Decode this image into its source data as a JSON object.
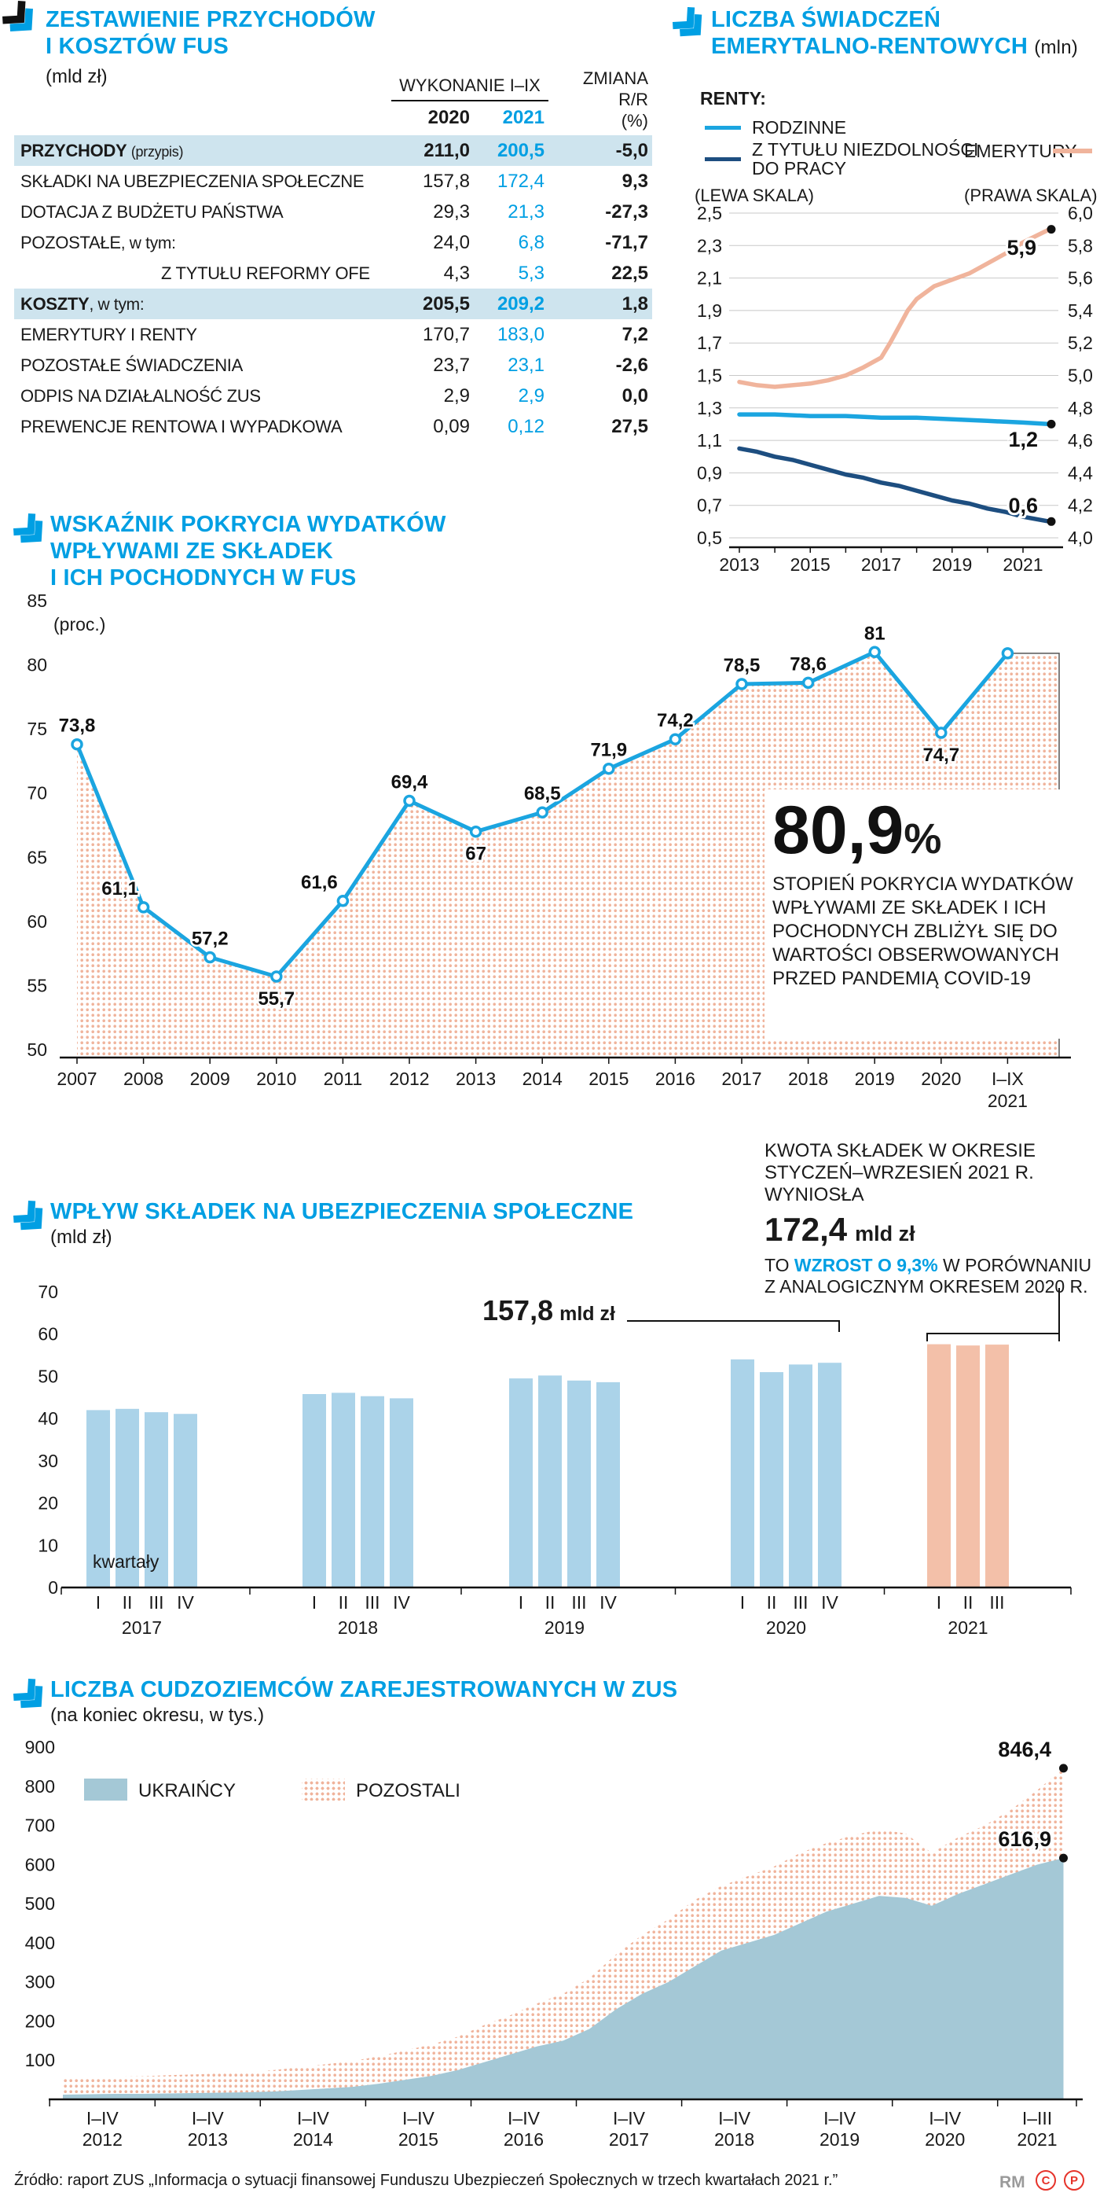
{
  "page": {
    "source_line": "Źródło: raport ZUS „Informacja o sytuacji finansowej Funduszu Ubezpieczeń Społecznych w trzech kwartałach 2021 r.”",
    "credit": "RM",
    "mark_c": "C",
    "mark_p": "P"
  },
  "colors": {
    "accent_blue": "#009fe3",
    "line_cyan": "#1ba5e0",
    "navy": "#1d4e80",
    "salmon": "#f0b49c",
    "bar_blue": "#abd3e9",
    "bar_salmon": "#f3c0a9",
    "area_blue": "#a4c8d6",
    "dot_fill": "#f0b49c",
    "table_highlight": "#cee4ee",
    "grid_grey": "#c8c8c8",
    "axis_black": "#111111",
    "mark_red": "#e6332a"
  },
  "fus_table": {
    "title_l1": "ZESTAWIENIE PRZYCHODÓW",
    "title_l2": "I KOSZTÓW FUS",
    "unit": "(mld zł)",
    "col_group": "WYKONANIE I–IX",
    "col_2020": "2020",
    "col_2021": "2021",
    "col_change_l1": "ZMIANA",
    "col_change_l2": "R/R",
    "col_change_l3": "(%)",
    "rows": [
      {
        "label": "PRZYCHODY",
        "suffix": "(przypis)",
        "v2020": "211,0",
        "v2021": "200,5",
        "change": "-5,0",
        "highlight": true
      },
      {
        "label": "SKŁADKI NA UBEZPIECZENIA SPOŁECZNE",
        "v2020": "157,8",
        "v2021": "172,4",
        "change": "9,3"
      },
      {
        "label": "DOTACJA Z BUDŻETU PAŃSTWA",
        "v2020": "29,3",
        "v2021": "21,3",
        "change": "-27,3"
      },
      {
        "label": "POZOSTAŁE",
        "sub": ", w tym:",
        "v2020": "24,0",
        "v2021": "6,8",
        "change": "-71,7"
      },
      {
        "label": "Z TYTUŁU REFORMY OFE",
        "indent": true,
        "v2020": "4,3",
        "v2021": "5,3",
        "change": "22,5"
      },
      {
        "label": "KOSZTY",
        "sub": ", w tym:",
        "v2020": "205,5",
        "v2021": "209,2",
        "change": "1,8",
        "highlight": true
      },
      {
        "label": "EMERYTURY I RENTY",
        "v2020": "170,7",
        "v2021": "183,0",
        "change": "7,2"
      },
      {
        "label": "POZOSTAŁE ŚWIADCZENIA",
        "v2020": "23,7",
        "v2021": "23,1",
        "change": "-2,6"
      },
      {
        "label": "ODPIS NA DZIAŁALNOŚĆ ZUS",
        "v2020": "2,9",
        "v2021": "2,9",
        "change": "0,0"
      },
      {
        "label": "PREWENCJE RENTOWA I WYPADKOWA",
        "v2020": "0,09",
        "v2021": "0,12",
        "change": "27,5"
      }
    ]
  },
  "benefits": {
    "title_l1": "LICZBA ŚWIADCZEŃ",
    "title_l2": "EMERYTALNO-RENTOWYCH",
    "title_unit": "(mln)",
    "legend_group": "RENTY:",
    "legend_rodzinne": "RODZINNE",
    "legend_niezdolnosc_l1": "Z TYTUŁU NIEZDOLNOŚCI",
    "legend_niezdolnosc_l2": "DO PRACY",
    "legend_emerytury": "EMERYTURY",
    "left_scale": "(LEWA SKALA)",
    "right_scale": "(PRAWA SKALA)"
  },
  "coverage": {
    "title_l1": "WSKAŹNIK POKRYCIA WYDATKÓW",
    "title_l2": "WPŁYWAMI ZE SKŁADEK",
    "title_l3": "I ICH POCHODNYCH W FUS",
    "unit": "(proc.)",
    "callout_value": "80,9",
    "callout_pct": "%",
    "callout_text": "STOPIEŃ POKRYCIA WYDATKÓW WPŁYWAMI ZE SKŁADEK I ICH POCHODNYCH ZBLIŻYŁ SIĘ DO WARTOŚCI OBSERWOWANYCH PRZED PANDEMIĄ COVID-19"
  },
  "contrib": {
    "title": "WPŁYW SKŁADEK NA UBEZPIECZENIA SPOŁECZNE",
    "unit": "(mld zł)",
    "kwartaly": "kwartały",
    "label_2020_value": "157,8",
    "label_2020_unit": "mld zł",
    "callout_l1": "KWOTA SKŁADEK W OKRESIE",
    "callout_l2": "STYCZEŃ–WRZESIEŃ 2021 R.",
    "callout_l3": "WYNIOSŁA",
    "callout_value": "172,4",
    "callout_value_unit": "mld zł",
    "callout_t1": "TO ",
    "callout_t2": "WZROST O 9,3%",
    "callout_t3": " W PORÓWNANIU",
    "callout_t4": "Z ANALOGICZNYM OKRESEM 2020 R."
  },
  "foreigners": {
    "title": "LICZBA CUDZOZIEMCÓW ZAREJESTROWANYCH W ZUS",
    "unit": "(na koniec okresu, w tys.)",
    "legend_ukraincy": "UKRAIŃCY",
    "legend_pozostali": "POZOSTALI",
    "end_total": "846,4",
    "end_ukr": "616,9"
  },
  "chart_data": [
    {
      "id": "benefits",
      "type": "line",
      "title": "LICZBA ŚWIADCZEŃ EMERYTALNO-RENTOWYCH (mln)",
      "left_axis": {
        "min": 0.5,
        "max": 2.5,
        "step": 0.2,
        "label": "(LEWA SKALA)"
      },
      "right_axis": {
        "min": 4.0,
        "max": 6.0,
        "step": 0.2,
        "label": "(PRAWA SKALA)"
      },
      "x_ticks": [
        2013,
        2015,
        2017,
        2019,
        2021
      ],
      "series": [
        {
          "key": "emerytury",
          "name": "EMERYTURY",
          "axis": "right",
          "color": "#f0b49c",
          "end_label": "5,9",
          "points": [
            [
              2013,
              4.96
            ],
            [
              2013.5,
              4.94
            ],
            [
              2014,
              4.93
            ],
            [
              2014.5,
              4.94
            ],
            [
              2015,
              4.95
            ],
            [
              2015.5,
              4.97
            ],
            [
              2016,
              5.0
            ],
            [
              2016.5,
              5.05
            ],
            [
              2017,
              5.11
            ],
            [
              2017.25,
              5.2
            ],
            [
              2017.5,
              5.3
            ],
            [
              2017.75,
              5.4
            ],
            [
              2018,
              5.47
            ],
            [
              2018.5,
              5.55
            ],
            [
              2019,
              5.59
            ],
            [
              2019.5,
              5.63
            ],
            [
              2020,
              5.69
            ],
            [
              2020.5,
              5.75
            ],
            [
              2021,
              5.82
            ],
            [
              2021.75,
              5.9
            ]
          ]
        },
        {
          "key": "niezdolnosc",
          "name": "Z TYTUŁU NIEZDOLNOŚCI DO PRACY",
          "axis": "left",
          "color": "#1d4e80",
          "end_label": "0,6",
          "points": [
            [
              2013,
              1.05
            ],
            [
              2013.5,
              1.03
            ],
            [
              2014,
              1.0
            ],
            [
              2014.5,
              0.98
            ],
            [
              2015,
              0.95
            ],
            [
              2015.5,
              0.92
            ],
            [
              2016,
              0.89
            ],
            [
              2016.5,
              0.87
            ],
            [
              2017,
              0.84
            ],
            [
              2017.5,
              0.82
            ],
            [
              2018,
              0.79
            ],
            [
              2018.5,
              0.76
            ],
            [
              2019,
              0.73
            ],
            [
              2019.5,
              0.71
            ],
            [
              2020,
              0.68
            ],
            [
              2020.5,
              0.66
            ],
            [
              2021,
              0.63
            ],
            [
              2021.75,
              0.6
            ]
          ]
        },
        {
          "key": "rodzinne",
          "name": "RODZINNE",
          "axis": "left",
          "color": "#1ba5e0",
          "end_label": "1,2",
          "points": [
            [
              2013,
              1.26
            ],
            [
              2014,
              1.26
            ],
            [
              2015,
              1.25
            ],
            [
              2016,
              1.25
            ],
            [
              2017,
              1.24
            ],
            [
              2018,
              1.24
            ],
            [
              2019,
              1.23
            ],
            [
              2020,
              1.22
            ],
            [
              2021,
              1.21
            ],
            [
              2021.75,
              1.2
            ]
          ]
        }
      ]
    },
    {
      "id": "coverage",
      "type": "line-area",
      "title": "WSKAŹNIK POKRYCIA WYDATKÓW WPŁYWAMI ZE SKŁADEK I ICH POCHODNYCH W FUS (proc.)",
      "categories": [
        "2007",
        "2008",
        "2009",
        "2010",
        "2011",
        "2012",
        "2013",
        "2014",
        "2015",
        "2016",
        "2017",
        "2018",
        "2019",
        "2020",
        [
          "I–IX",
          "2021"
        ]
      ],
      "values": [
        73.8,
        61.1,
        57.2,
        55.7,
        61.6,
        69.4,
        67,
        68.5,
        71.9,
        74.2,
        78.5,
        78.6,
        81,
        74.7,
        80.9
      ],
      "labels": [
        "73,8",
        "61,1",
        "57,2",
        "55,7",
        "61,6",
        "69,4",
        "67",
        "68,5",
        "71,9",
        "74,2",
        "78,5",
        "78,6",
        "81",
        "74,7",
        ""
      ],
      "label_pos": [
        "above",
        "above-left",
        "above",
        "below",
        "above-left",
        "above",
        "below",
        "above",
        "above",
        "above",
        "above",
        "above",
        "above",
        "below",
        "none"
      ],
      "ylim": [
        50,
        85
      ],
      "yticks": [
        50,
        55,
        60,
        65,
        70,
        75,
        80,
        85
      ]
    },
    {
      "id": "contrib",
      "type": "bar",
      "title": "WPŁYW SKŁADEK NA UBEZPIECZENIA SPOŁECZNE (mld zł)",
      "ylim": [
        0,
        70
      ],
      "yticks": [
        0,
        10,
        20,
        30,
        40,
        50,
        60,
        70
      ],
      "groups": [
        {
          "year": "2017",
          "quarters": [
            "I",
            "II",
            "III",
            "IV"
          ],
          "values": [
            42.0,
            42.3,
            41.5,
            41.1
          ],
          "color": "blue"
        },
        {
          "year": "2018",
          "quarters": [
            "I",
            "II",
            "III",
            "IV"
          ],
          "values": [
            45.8,
            46.1,
            45.3,
            44.8
          ],
          "color": "blue"
        },
        {
          "year": "2019",
          "quarters": [
            "I",
            "II",
            "III",
            "IV"
          ],
          "values": [
            49.5,
            50.2,
            49.0,
            48.6
          ],
          "color": "blue"
        },
        {
          "year": "2020",
          "quarters": [
            "I",
            "II",
            "III",
            "IV"
          ],
          "values": [
            54.0,
            51.0,
            52.8,
            53.2
          ],
          "color": "blue"
        },
        {
          "year": "2021",
          "quarters": [
            "I",
            "II",
            "III"
          ],
          "values": [
            57.6,
            57.3,
            57.5
          ],
          "color": "salmon"
        }
      ]
    },
    {
      "id": "foreigners",
      "type": "stacked-area",
      "title": "LICZBA CUDZOZIEMCÓW ZAREJESTROWANYCH W ZUS (na koniec okresu, w tys.)",
      "yticks": [
        100,
        200,
        300,
        400,
        500,
        600,
        700,
        800,
        900
      ],
      "x_labels": [
        [
          "I–IV",
          "2012"
        ],
        [
          "I–IV",
          "2013"
        ],
        [
          "I–IV",
          "2014"
        ],
        [
          "I–IV",
          "2015"
        ],
        [
          "I–IV",
          "2016"
        ],
        [
          "I–IV",
          "2017"
        ],
        [
          "I–IV",
          "2018"
        ],
        [
          "I–IV",
          "2019"
        ],
        [
          "I–IV",
          "2020"
        ],
        [
          "I–III",
          "2021"
        ]
      ],
      "ukraincy": [
        12,
        13,
        14,
        14,
        15,
        16,
        17,
        18,
        20,
        24,
        28,
        32,
        40,
        50,
        60,
        75,
        95,
        115,
        135,
        150,
        180,
        230,
        270,
        300,
        340,
        380,
        400,
        420,
        450,
        480,
        500,
        520,
        515,
        495,
        525,
        550,
        575,
        600,
        616.9
      ],
      "total": [
        55,
        57,
        58,
        59,
        62,
        64,
        66,
        68,
        75,
        82,
        90,
        98,
        110,
        125,
        140,
        160,
        190,
        215,
        245,
        270,
        310,
        370,
        420,
        460,
        510,
        545,
        570,
        595,
        630,
        655,
        675,
        690,
        680,
        630,
        670,
        700,
        740,
        790,
        846.4
      ]
    }
  ]
}
